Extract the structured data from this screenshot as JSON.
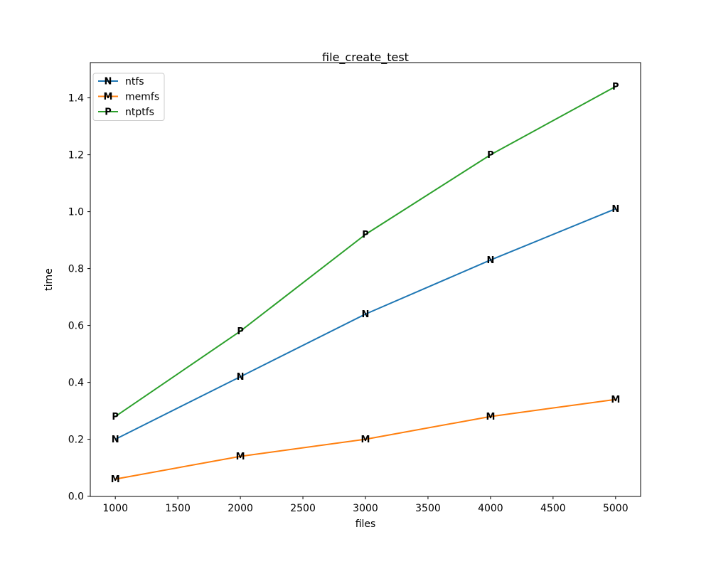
{
  "figure": {
    "title": "file_create_test",
    "xlabel": "files",
    "ylabel": "time"
  },
  "chart_data": {
    "type": "line",
    "title": "file_create_test",
    "xlabel": "files",
    "ylabel": "time",
    "x": [
      1000,
      2000,
      3000,
      4000,
      5000
    ],
    "series": [
      {
        "name": "ntfs",
        "color": "#1f77b4",
        "marker": "N",
        "values": [
          0.2,
          0.42,
          0.64,
          0.83,
          1.01
        ]
      },
      {
        "name": "memfs",
        "color": "#ff7f0e",
        "marker": "M",
        "values": [
          0.06,
          0.14,
          0.2,
          0.28,
          0.34
        ]
      },
      {
        "name": "ntptfs",
        "color": "#2ca02c",
        "marker": "P",
        "values": [
          0.28,
          0.58,
          0.92,
          1.2,
          1.44
        ]
      }
    ],
    "xticks": [
      1000,
      1500,
      2000,
      2500,
      3000,
      3500,
      4000,
      4500,
      5000
    ],
    "yticks": [
      "0.0",
      "0.2",
      "0.4",
      "0.6",
      "0.8",
      "1.0",
      "1.2",
      "1.4"
    ],
    "xlim": [
      800,
      5200
    ],
    "ylim": [
      -0.001,
      1.524
    ],
    "grid": false,
    "legend_position": "upper-left",
    "spine_color": "#000000",
    "legend_border_color": "#cccccc"
  }
}
